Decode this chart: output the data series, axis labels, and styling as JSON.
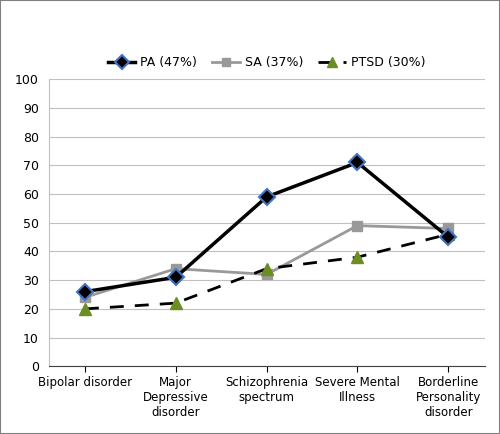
{
  "categories": [
    "Bipolar disorder",
    "Major\nDepressive\ndisorder",
    "Schizophrenia\nspectrum",
    "Severe Mental\nIllness",
    "Borderline\nPersonality\ndisorder"
  ],
  "PA": [
    26,
    31,
    59,
    71,
    45
  ],
  "SA": [
    24,
    34,
    32,
    49,
    48
  ],
  "PTSD": [
    20,
    22,
    34,
    38,
    46
  ],
  "PA_label": "PA (47%)",
  "SA_label": "SA (37%)",
  "PTSD_label": "PTSD (30%)",
  "PA_color": "#000000",
  "SA_color": "#999999",
  "PTSD_color": "#6b8e23",
  "PA_marker": "D",
  "SA_marker": "s",
  "PTSD_marker": "^",
  "PA_marker_edge": "#4472c4",
  "SA_marker_edge": "#999999",
  "PTSD_marker_edge": "#6b8e23",
  "ylim": [
    0,
    100
  ],
  "yticks": [
    0,
    10,
    20,
    30,
    40,
    50,
    60,
    70,
    80,
    90,
    100
  ],
  "grid_color": "#c0c0c0",
  "background_color": "#ffffff",
  "figure_border_color": "#808080"
}
